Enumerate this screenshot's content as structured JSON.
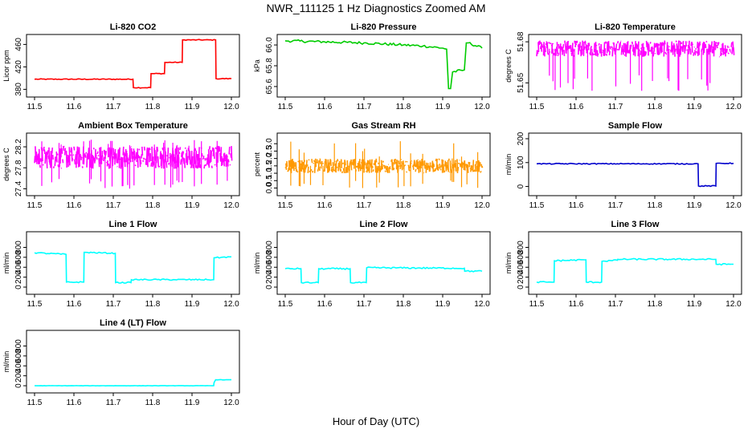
{
  "page": {
    "title": "NWR_111125  1 Hz Diagnostics Zoomed AM",
    "xlabel": "Hour of Day (UTC)"
  },
  "chart_data": [
    {
      "type": "line",
      "title": "Li-820 CO2",
      "ylabel": "Licor ppm",
      "color": "#ff0000",
      "xlim": [
        11.5,
        12.0
      ],
      "ylim": [
        372,
        472
      ],
      "xticks": [
        "11.5",
        "11.6",
        "11.7",
        "11.8",
        "11.9",
        "12.0"
      ],
      "yticks": [
        "380",
        "420",
        "460"
      ],
      "x": [
        11.5,
        11.75,
        11.751,
        11.795,
        11.796,
        11.83,
        11.831,
        11.875,
        11.876,
        11.96,
        11.961,
        12.0
      ],
      "y": [
        398,
        398,
        383,
        383,
        408,
        408,
        428,
        428,
        468,
        468,
        399,
        399
      ],
      "noise": 0.8
    },
    {
      "type": "line",
      "title": "Li-820 Pressure",
      "ylabel": "kPa",
      "color": "#00cc00",
      "xlim": [
        11.5,
        12.0
      ],
      "ylim": [
        65.53,
        66.07
      ],
      "xticks": [
        "11.5",
        "11.6",
        "11.7",
        "11.8",
        "11.9",
        "12.0"
      ],
      "yticks": [
        "65.6",
        "65.8",
        "66.0"
      ],
      "x": [
        11.5,
        11.6,
        11.7,
        11.8,
        11.85,
        11.9,
        11.91,
        11.915,
        11.92,
        11.925,
        11.955,
        11.96,
        11.965,
        12.0
      ],
      "y": [
        66.04,
        66.03,
        66.02,
        66.0,
        65.99,
        65.97,
        65.96,
        65.58,
        65.58,
        65.74,
        65.76,
        66.02,
        66.02,
        65.97
      ],
      "noise": 0.012
    },
    {
      "type": "line",
      "title": "Li-820 Temperature",
      "ylabel": "degrees C",
      "color": "#ff00ff",
      "xlim": [
        11.5,
        12.0
      ],
      "ylim": [
        51.642,
        51.683
      ],
      "xticks": [
        "11.5",
        "11.6",
        "11.7",
        "11.8",
        "11.9",
        "12.0"
      ],
      "yticks": [
        "51.65",
        "51.68"
      ],
      "x": [
        11.5,
        12.0
      ],
      "y": [
        51.675,
        51.675
      ],
      "band": [
        51.669,
        51.681
      ],
      "spike_low": 51.644,
      "spike_count": 30
    },
    {
      "type": "line",
      "title": "Ambient Box Temperature",
      "ylabel": "degrees C",
      "color": "#ff00ff",
      "xlim": [
        11.5,
        12.0
      ],
      "ylim": [
        27.33,
        28.4
      ],
      "xticks": [
        "11.5",
        "11.6",
        "11.7",
        "11.8",
        "11.9",
        "12.0"
      ],
      "yticks": [
        "27.4",
        "27.8",
        "28.2"
      ],
      "x": [
        11.5,
        12.0
      ],
      "y": [
        28.0,
        28.0
      ],
      "band": [
        27.78,
        28.22
      ],
      "spike_low": 27.4,
      "spike_high": 28.34,
      "spike_count": 40
    },
    {
      "type": "line",
      "title": "Gas Stream RH",
      "ylabel": "percent",
      "color": "#ff9900",
      "xlim": [
        11.5,
        12.0
      ],
      "ylim": [
        -0.3,
        3.5
      ],
      "xticks": [
        "11.5",
        "11.6",
        "11.7",
        "11.8",
        "11.9",
        "12.0"
      ],
      "yticks": [
        "0.0",
        "0.5",
        "1.0",
        "1.5",
        "2.0",
        "2.5",
        "3.0"
      ],
      "x": [
        11.5,
        12.0
      ],
      "y": [
        1.5,
        1.5
      ],
      "band": [
        1.0,
        2.0
      ],
      "spike_low": 0.0,
      "spike_high": 3.2,
      "spike_count": 35
    },
    {
      "type": "line",
      "title": "Sample Flow",
      "ylabel": "ml/min",
      "color": "#0000cc",
      "xlim": [
        11.5,
        12.0
      ],
      "ylim": [
        -25,
        210
      ],
      "xticks": [
        "11.5",
        "11.6",
        "11.7",
        "11.8",
        "11.9",
        "12.0"
      ],
      "yticks": [
        "0",
        "100",
        "200"
      ],
      "x": [
        11.5,
        11.91,
        11.911,
        11.955,
        11.956,
        12.0
      ],
      "y": [
        95,
        95,
        2,
        2,
        97,
        97
      ],
      "noise": 2
    },
    {
      "type": "line",
      "title": "Line 1 Flow",
      "ylabel": "ml/min",
      "color": "#00ffff",
      "xlim": [
        11.5,
        12.0
      ],
      "ylim": [
        -80,
        1050
      ],
      "xticks": [
        "11.5",
        "11.6",
        "11.7",
        "11.8",
        "11.9",
        "12.0"
      ],
      "yticks": [
        "0",
        "200",
        "400",
        "600",
        "800"
      ],
      "x": [
        11.5,
        11.58,
        11.581,
        11.625,
        11.626,
        11.705,
        11.706,
        11.745,
        11.746,
        11.955,
        11.956,
        12.0
      ],
      "y": [
        690,
        660,
        100,
        100,
        700,
        680,
        90,
        90,
        150,
        150,
        590,
        610
      ],
      "noise": 12
    },
    {
      "type": "line",
      "title": "Line 2 Flow",
      "ylabel": "ml/min",
      "color": "#00ffff",
      "xlim": [
        11.5,
        12.0
      ],
      "ylim": [
        -80,
        1050
      ],
      "xticks": [
        "11.5",
        "11.6",
        "11.7",
        "11.8",
        "11.9",
        "12.0"
      ],
      "yticks": [
        "0",
        "200",
        "400",
        "600",
        "800"
      ],
      "x": [
        11.5,
        11.54,
        11.541,
        11.584,
        11.585,
        11.665,
        11.666,
        11.706,
        11.707,
        11.955,
        11.956,
        12.0
      ],
      "y": [
        370,
        370,
        90,
        90,
        370,
        370,
        90,
        90,
        390,
        380,
        320,
        320
      ],
      "noise": 14
    },
    {
      "type": "line",
      "title": "Line 3 Flow",
      "ylabel": "ml/min",
      "color": "#00ffff",
      "xlim": [
        11.5,
        12.0
      ],
      "ylim": [
        -80,
        1050
      ],
      "xticks": [
        "11.5",
        "11.6",
        "11.7",
        "11.8",
        "11.9",
        "12.0"
      ],
      "yticks": [
        "0",
        "200",
        "400",
        "600",
        "800"
      ],
      "x": [
        11.5,
        11.544,
        11.545,
        11.625,
        11.626,
        11.665,
        11.666,
        11.705,
        11.706,
        11.955,
        11.956,
        12.0
      ],
      "y": [
        100,
        100,
        530,
        550,
        100,
        100,
        520,
        540,
        560,
        560,
        460,
        460
      ],
      "noise": 14
    },
    {
      "type": "line",
      "title": "Line 4 (LT) Flow",
      "ylabel": "ml/min",
      "color": "#00ffff",
      "xlim": [
        11.5,
        12.0
      ],
      "ylim": [
        -80,
        1050
      ],
      "xticks": [
        "11.5",
        "11.6",
        "11.7",
        "11.8",
        "11.9",
        "12.0"
      ],
      "yticks": [
        "0",
        "200",
        "400",
        "600",
        "800"
      ],
      "x": [
        11.5,
        11.955,
        11.956,
        11.96,
        12.0
      ],
      "y": [
        0,
        0,
        60,
        120,
        120
      ],
      "noise": 3
    }
  ]
}
